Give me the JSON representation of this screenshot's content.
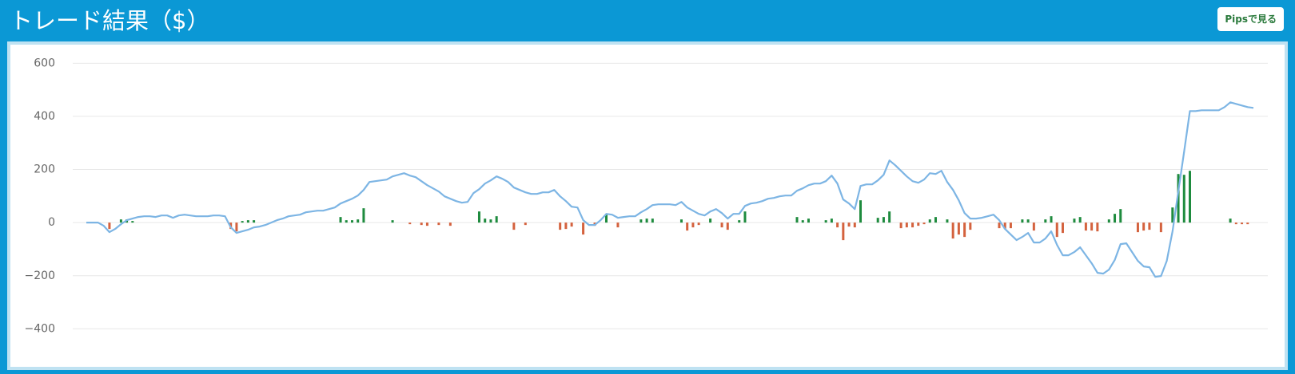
{
  "header": {
    "title": "トレード結果（$）",
    "button": "Pipsで見る"
  },
  "chart_data": {
    "type": "combo",
    "grid": true,
    "ylim": [
      -480,
      640
    ],
    "yticks": [
      {
        "value": -400,
        "label": "−400"
      },
      {
        "value": -200,
        "label": "−200"
      },
      0,
      200,
      400,
      600
    ],
    "positive_color": "#1e8b3e",
    "negative_color": "#d4623e",
    "series": [
      {
        "type": "bar",
        "values": [
          null,
          null,
          null,
          null,
          -24,
          null,
          12,
          12,
          6,
          null,
          null,
          null,
          null,
          null,
          null,
          null,
          null,
          null,
          null,
          null,
          null,
          null,
          null,
          null,
          null,
          -24,
          -33,
          6,
          9,
          9,
          null,
          null,
          null,
          null,
          null,
          null,
          null,
          null,
          null,
          null,
          null,
          null,
          null,
          null,
          21,
          9,
          9,
          12,
          54,
          null,
          null,
          null,
          null,
          9,
          null,
          null,
          -6,
          null,
          -9,
          -12,
          null,
          -9,
          null,
          -12,
          null,
          null,
          null,
          null,
          42,
          15,
          12,
          24,
          null,
          null,
          -27,
          null,
          -9,
          null,
          null,
          null,
          null,
          null,
          -27,
          -24,
          -15,
          null,
          -45,
          null,
          -12,
          null,
          33,
          null,
          -18,
          null,
          null,
          null,
          12,
          15,
          15,
          null,
          null,
          null,
          null,
          12,
          -30,
          -18,
          -9,
          null,
          15,
          null,
          -18,
          -27,
          null,
          9,
          42,
          null,
          null,
          null,
          null,
          null,
          null,
          null,
          null,
          21,
          9,
          15,
          null,
          null,
          9,
          15,
          -18,
          -66,
          -15,
          -18,
          84,
          null,
          null,
          18,
          21,
          42,
          null,
          -21,
          -18,
          -18,
          -12,
          -6,
          12,
          21,
          null,
          12,
          -60,
          -45,
          -54,
          -27,
          null,
          null,
          null,
          null,
          -21,
          -24,
          -21,
          null,
          12,
          12,
          -30,
          null,
          12,
          24,
          -54,
          -39,
          null,
          15,
          21,
          -30,
          -30,
          -33,
          null,
          12,
          33,
          51,
          null,
          null,
          -36,
          -30,
          -27,
          null,
          -36,
          null,
          57,
          183,
          180,
          195,
          null,
          null,
          null,
          null,
          null,
          null,
          15,
          -6,
          -6,
          -6,
          null
        ]
      },
      {
        "type": "line",
        "color": "#7db5e4",
        "values": [
          0,
          0,
          0,
          -12,
          -36,
          -24,
          -6,
          9,
          15,
          21,
          24,
          24,
          21,
          27,
          27,
          18,
          27,
          30,
          27,
          24,
          24,
          24,
          27,
          27,
          24,
          -18,
          -39,
          -33,
          -27,
          -18,
          -15,
          -9,
          0,
          9,
          15,
          24,
          27,
          30,
          39,
          42,
          45,
          45,
          51,
          57,
          72,
          81,
          90,
          102,
          123,
          153,
          156,
          159,
          162,
          174,
          180,
          186,
          177,
          171,
          156,
          141,
          129,
          117,
          99,
          90,
          81,
          75,
          78,
          111,
          126,
          147,
          159,
          174,
          165,
          153,
          132,
          123,
          114,
          108,
          108,
          114,
          114,
          123,
          99,
          81,
          60,
          57,
          9,
          -9,
          -9,
          9,
          33,
          30,
          18,
          21,
          24,
          24,
          39,
          51,
          66,
          69,
          69,
          69,
          66,
          78,
          57,
          45,
          33,
          27,
          42,
          51,
          36,
          15,
          33,
          33,
          63,
          72,
          75,
          81,
          90,
          93,
          99,
          102,
          102,
          120,
          129,
          141,
          147,
          147,
          156,
          177,
          147,
          87,
          72,
          51,
          138,
          144,
          144,
          159,
          180,
          234,
          216,
          195,
          174,
          156,
          150,
          162,
          186,
          183,
          195,
          153,
          123,
          84,
          36,
          15,
          15,
          18,
          24,
          30,
          9,
          -24,
          -45,
          -66,
          -54,
          -39,
          -75,
          -75,
          -60,
          -33,
          -84,
          -123,
          -123,
          -111,
          -93,
          -123,
          -153,
          -189,
          -192,
          -177,
          -141,
          -81,
          -78,
          -111,
          -144,
          -165,
          -168,
          -204,
          -201,
          -144,
          -33,
          117,
          267,
          420,
          420,
          423,
          423,
          423,
          423,
          435,
          453,
          447,
          441,
          435,
          432
        ]
      }
    ]
  }
}
